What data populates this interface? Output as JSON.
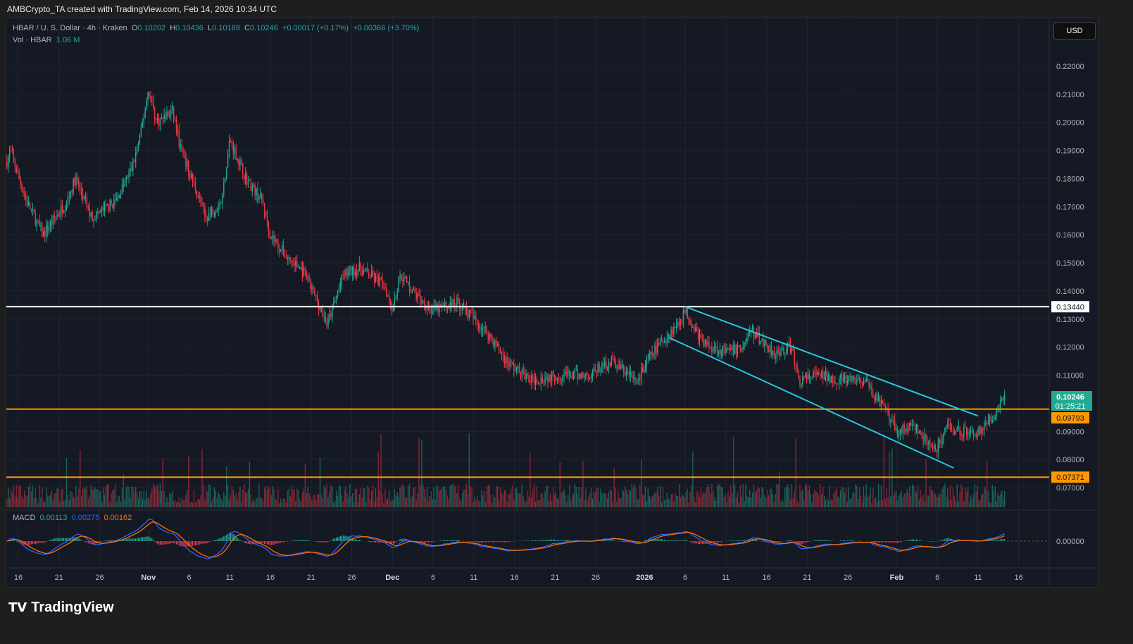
{
  "header": {
    "attribution": "AMBCrypto_TA created with TradingView.com, Feb 14, 2026 10:34 UTC"
  },
  "legend": {
    "symbol": "HBAR / U. S. Dollar · 4h · Kraken",
    "o_label": "O",
    "o": "0.10202",
    "h_label": "H",
    "h": "0.10436",
    "l_label": "L",
    "l": "0.10189",
    "c_label": "C",
    "c": "0.10246",
    "change": "+0.00017 (+0.17%)",
    "change2": "+0.00366 (+3.70%)",
    "vol_label": "Vol · HBAR",
    "vol": "1.06 M"
  },
  "macd_legend": {
    "label": "MACD",
    "macd": "0.00113",
    "signal": "0.00275",
    "hist": "0.00162"
  },
  "currency_button": "USD",
  "brand": "TradingView",
  "colors": {
    "up": "#22ab94",
    "down": "#f23645",
    "channel": "#26c6da",
    "support": "#ff9800",
    "resistance": "#ffffff",
    "macd": "#2962ff",
    "signal": "#ff6d00"
  },
  "chart_data": {
    "type": "candlestick",
    "ylim": [
      0.065,
      0.225
    ],
    "grid": true,
    "y_ticks": [
      "0.22000",
      "0.21000",
      "0.20000",
      "0.19000",
      "0.18000",
      "0.17000",
      "0.16000",
      "0.15000",
      "0.14000",
      "0.13000",
      "0.12000",
      "0.11000",
      "0.09000",
      "0.08000",
      "0.07000"
    ],
    "y_tick_values": [
      0.22,
      0.21,
      0.2,
      0.19,
      0.18,
      0.17,
      0.16,
      0.15,
      0.14,
      0.13,
      0.12,
      0.11,
      0.09,
      0.08,
      0.07
    ],
    "x_ticks": [
      [
        "2025-10-16",
        "16"
      ],
      [
        "2025-10-21",
        "21"
      ],
      [
        "2025-10-26",
        "26"
      ],
      [
        "2025-11-01",
        "Nov"
      ],
      [
        "2025-11-06",
        "6"
      ],
      [
        "2025-11-11",
        "11"
      ],
      [
        "2025-11-16",
        "16"
      ],
      [
        "2025-11-21",
        "21"
      ],
      [
        "2025-11-26",
        "26"
      ],
      [
        "2025-12-01",
        "Dec"
      ],
      [
        "2025-12-06",
        "6"
      ],
      [
        "2025-12-11",
        "11"
      ],
      [
        "2025-12-16",
        "16"
      ],
      [
        "2025-12-21",
        "21"
      ],
      [
        "2025-12-26",
        "26"
      ],
      [
        "2026-01-01",
        "2026"
      ],
      [
        "2026-01-06",
        "6"
      ],
      [
        "2026-01-11",
        "11"
      ],
      [
        "2026-01-16",
        "16"
      ],
      [
        "2026-01-21",
        "21"
      ],
      [
        "2026-01-26",
        "26"
      ],
      [
        "2026-02-01",
        "Feb"
      ],
      [
        "2026-02-06",
        "6"
      ],
      [
        "2026-02-11",
        "11"
      ],
      [
        "2026-02-16",
        "16"
      ]
    ],
    "price_path": [
      [
        "2025-10-14",
        0.18
      ],
      [
        "2025-10-15",
        0.19
      ],
      [
        "2025-10-17",
        0.172
      ],
      [
        "2025-10-19",
        0.16
      ],
      [
        "2025-10-22",
        0.172
      ],
      [
        "2025-10-23",
        0.18
      ],
      [
        "2025-10-25",
        0.166
      ],
      [
        "2025-10-28",
        0.172
      ],
      [
        "2025-10-30",
        0.184
      ],
      [
        "2025-10-31",
        0.195
      ],
      [
        "2025-11-01",
        0.212
      ],
      [
        "2025-11-02",
        0.2
      ],
      [
        "2025-11-04",
        0.204
      ],
      [
        "2025-11-05",
        0.19
      ],
      [
        "2025-11-07",
        0.175
      ],
      [
        "2025-11-08",
        0.166
      ],
      [
        "2025-11-10",
        0.172
      ],
      [
        "2025-11-11",
        0.194
      ],
      [
        "2025-11-13",
        0.18
      ],
      [
        "2025-11-15",
        0.172
      ],
      [
        "2025-11-16",
        0.16
      ],
      [
        "2025-11-18",
        0.152
      ],
      [
        "2025-11-20",
        0.147
      ],
      [
        "2025-11-22",
        0.135
      ],
      [
        "2025-11-23",
        0.128
      ],
      [
        "2025-11-25",
        0.146
      ],
      [
        "2025-11-27",
        0.148
      ],
      [
        "2025-11-30",
        0.142
      ],
      [
        "2025-12-01",
        0.134
      ],
      [
        "2025-12-02",
        0.146
      ],
      [
        "2025-12-04",
        0.138
      ],
      [
        "2025-12-06",
        0.133
      ],
      [
        "2025-12-09",
        0.136
      ],
      [
        "2025-12-11",
        0.13
      ],
      [
        "2025-12-13",
        0.124
      ],
      [
        "2025-12-15",
        0.115
      ],
      [
        "2025-12-18",
        0.108
      ],
      [
        "2025-12-21",
        0.11
      ],
      [
        "2025-12-25",
        0.11
      ],
      [
        "2025-12-28",
        0.115
      ],
      [
        "2025-12-31",
        0.108
      ],
      [
        "2026-01-02",
        0.118
      ],
      [
        "2026-01-05",
        0.128
      ],
      [
        "2026-01-06",
        0.133
      ],
      [
        "2026-01-08",
        0.122
      ],
      [
        "2026-01-11",
        0.118
      ],
      [
        "2026-01-13",
        0.12
      ],
      [
        "2026-01-14",
        0.126
      ],
      [
        "2026-01-17",
        0.118
      ],
      [
        "2026-01-19",
        0.12
      ],
      [
        "2026-01-20",
        0.108
      ],
      [
        "2026-01-22",
        0.11
      ],
      [
        "2026-01-26",
        0.108
      ],
      [
        "2026-01-28",
        0.108
      ],
      [
        "2026-01-30",
        0.1
      ],
      [
        "2026-02-01",
        0.09
      ],
      [
        "2026-02-03",
        0.092
      ],
      [
        "2026-02-05",
        0.085
      ],
      [
        "2026-02-06",
        0.083
      ],
      [
        "2026-02-07",
        0.092
      ],
      [
        "2026-02-09",
        0.09
      ],
      [
        "2026-02-11",
        0.09
      ],
      [
        "2026-02-12",
        0.092
      ],
      [
        "2026-02-13",
        0.096
      ],
      [
        "2026-02-14",
        0.1025
      ]
    ],
    "horizontal_levels": [
      {
        "price": 0.1344,
        "label": "0.13440",
        "color": "#ffffff"
      },
      {
        "price": 0.09793,
        "label": "0.09793",
        "color": "#ff9800"
      },
      {
        "price": 0.07371,
        "label": "0.07371",
        "color": "#ff9800"
      }
    ],
    "last_price": {
      "label": "0.10246",
      "value": 0.10246,
      "countdown": "01:25:21"
    },
    "channel": [
      {
        "from": [
          "2026-01-06",
          0.1344
        ],
        "to": [
          "2026-02-11",
          0.0955
        ]
      },
      {
        "from": [
          "2026-01-04",
          0.1234
        ],
        "to": [
          "2026-02-08",
          0.077
        ]
      }
    ],
    "macd_zero_label": "0.00000"
  }
}
